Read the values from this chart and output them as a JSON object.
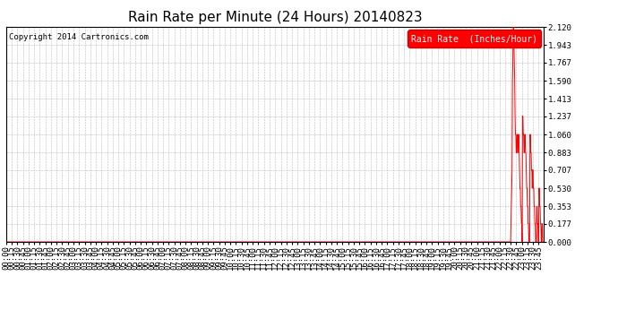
{
  "title": "Rain Rate per Minute (24 Hours) 20140823",
  "copyright": "Copyright 2014 Cartronics.com",
  "legend_label": "Rain Rate  (Inches/Hour)",
  "legend_bg": "#ff0000",
  "legend_text_color": "#ffffff",
  "line_color": "#ff0000",
  "background_color": "#ffffff",
  "grid_color": "#bbbbbb",
  "yticks": [
    0.0,
    0.177,
    0.353,
    0.53,
    0.707,
    0.883,
    1.06,
    1.237,
    1.413,
    1.59,
    1.767,
    1.943,
    2.12
  ],
  "ylim": [
    0.0,
    2.12
  ],
  "total_minutes": 1440,
  "spike_data": [
    [
      1350,
      0.0
    ],
    [
      1351,
      0.18
    ],
    [
      1352,
      0.35
    ],
    [
      1353,
      0.53
    ],
    [
      1354,
      0.71
    ],
    [
      1355,
      1.59
    ],
    [
      1356,
      1.77
    ],
    [
      1357,
      2.12
    ],
    [
      1358,
      2.12
    ],
    [
      1359,
      1.94
    ],
    [
      1360,
      1.77
    ],
    [
      1361,
      1.59
    ],
    [
      1362,
      1.24
    ],
    [
      1363,
      1.06
    ],
    [
      1364,
      1.06
    ],
    [
      1365,
      0.88
    ],
    [
      1366,
      0.88
    ],
    [
      1367,
      1.06
    ],
    [
      1368,
      1.06
    ],
    [
      1369,
      0.88
    ],
    [
      1370,
      0.88
    ],
    [
      1371,
      1.06
    ],
    [
      1372,
      1.06
    ],
    [
      1373,
      0.88
    ],
    [
      1374,
      0.71
    ],
    [
      1375,
      0.53
    ],
    [
      1376,
      0.53
    ],
    [
      1377,
      0.35
    ],
    [
      1378,
      0.35
    ],
    [
      1379,
      0.18
    ],
    [
      1380,
      0.18
    ],
    [
      1381,
      0.0
    ],
    [
      1382,
      1.24
    ],
    [
      1383,
      1.24
    ],
    [
      1384,
      1.06
    ],
    [
      1385,
      1.06
    ],
    [
      1386,
      0.88
    ],
    [
      1387,
      0.88
    ],
    [
      1388,
      1.06
    ],
    [
      1389,
      1.06
    ],
    [
      1390,
      0.88
    ],
    [
      1391,
      0.88
    ],
    [
      1392,
      0.71
    ],
    [
      1393,
      0.53
    ],
    [
      1394,
      0.53
    ],
    [
      1395,
      0.35
    ],
    [
      1396,
      0.35
    ],
    [
      1397,
      0.18
    ],
    [
      1398,
      0.18
    ],
    [
      1399,
      0.0
    ],
    [
      1400,
      0.0
    ],
    [
      1401,
      0.0
    ],
    [
      1402,
      1.06
    ],
    [
      1403,
      1.06
    ],
    [
      1404,
      0.88
    ],
    [
      1405,
      0.88
    ],
    [
      1406,
      0.71
    ],
    [
      1407,
      0.71
    ],
    [
      1408,
      0.53
    ],
    [
      1409,
      0.71
    ],
    [
      1410,
      0.71
    ],
    [
      1411,
      0.53
    ],
    [
      1412,
      0.53
    ],
    [
      1413,
      0.35
    ],
    [
      1414,
      0.35
    ],
    [
      1415,
      0.18
    ],
    [
      1416,
      0.18
    ],
    [
      1417,
      0.0
    ],
    [
      1418,
      0.0
    ],
    [
      1419,
      0.0
    ],
    [
      1420,
      0.35
    ],
    [
      1421,
      0.35
    ],
    [
      1422,
      0.18
    ],
    [
      1423,
      0.18
    ],
    [
      1424,
      0.0
    ],
    [
      1425,
      0.0
    ],
    [
      1426,
      0.53
    ],
    [
      1427,
      0.53
    ],
    [
      1428,
      0.35
    ],
    [
      1429,
      0.35
    ],
    [
      1430,
      0.18
    ],
    [
      1431,
      0.18
    ],
    [
      1432,
      0.0
    ],
    [
      1433,
      0.0
    ],
    [
      1434,
      0.18
    ],
    [
      1435,
      0.18
    ],
    [
      1436,
      0.0
    ],
    [
      1437,
      0.0
    ],
    [
      1438,
      0.0
    ],
    [
      1439,
      0.0
    ]
  ],
  "xtick_interval_minutes": 15,
  "title_fontsize": 11,
  "axis_fontsize": 6.5,
  "copyright_fontsize": 6.5
}
